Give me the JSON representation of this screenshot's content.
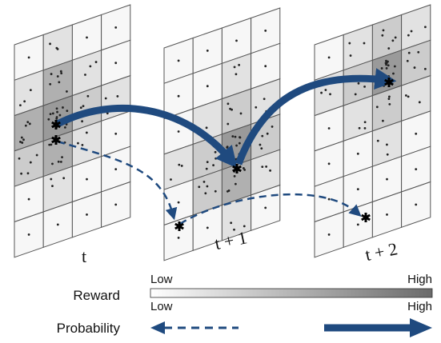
{
  "grids": [
    {
      "label": "t"
    },
    {
      "label": "t + 1"
    },
    {
      "label": "t + 2"
    }
  ],
  "legend": {
    "reward": {
      "title": "Reward",
      "low": "Low",
      "high": "High"
    },
    "probability": {
      "title": "Probability",
      "low": "Low",
      "high": "High"
    }
  }
}
